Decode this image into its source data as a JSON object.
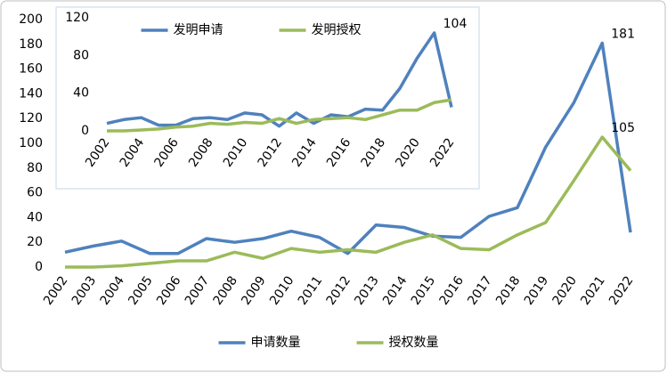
{
  "chart_data": [
    {
      "type": "line",
      "categories": [
        "2002",
        "2003",
        "2004",
        "2005",
        "2006",
        "2007",
        "2008",
        "2009",
        "2010",
        "2011",
        "2012",
        "2013",
        "2014",
        "2015",
        "2016",
        "2017",
        "2018",
        "2019",
        "2020",
        "2021",
        "2022"
      ],
      "series": [
        {
          "name": "申请数量",
          "color": "#4f81bd",
          "values": [
            12,
            17,
            21,
            11,
            11,
            23,
            20,
            23,
            29,
            24,
            11,
            34,
            32,
            25,
            24,
            41,
            48,
            97,
            133,
            181,
            28
          ],
          "value_labels": [
            null,
            null,
            null,
            null,
            null,
            null,
            null,
            null,
            null,
            null,
            null,
            null,
            null,
            null,
            null,
            null,
            null,
            null,
            null,
            "181",
            null
          ]
        },
        {
          "name": "授权数量",
          "color": "#9bbb59",
          "values": [
            0,
            0,
            1,
            3,
            5,
            5,
            12,
            7,
            15,
            12,
            14,
            12,
            20,
            26,
            15,
            14,
            26,
            36,
            70,
            105,
            78
          ],
          "value_labels": [
            null,
            null,
            null,
            null,
            null,
            null,
            null,
            null,
            null,
            null,
            null,
            null,
            null,
            null,
            null,
            null,
            null,
            null,
            null,
            "105",
            null
          ]
        }
      ],
      "ylim": [
        0,
        200
      ],
      "yticks": [
        0,
        20,
        40,
        60,
        80,
        100,
        120,
        140,
        160,
        180,
        200
      ],
      "legend": "bottom"
    },
    {
      "type": "line",
      "categories": [
        "2002",
        null,
        "2004",
        null,
        "2006",
        null,
        "2008",
        null,
        "2010",
        null,
        "2012",
        null,
        "2014",
        null,
        "2016",
        null,
        "2018",
        null,
        "2020",
        null,
        "2022"
      ],
      "series": [
        {
          "name": "发明申请",
          "color": "#4f81bd",
          "values": [
            8,
            12,
            14,
            6,
            6,
            13,
            14,
            12,
            19,
            17,
            5,
            19,
            8,
            17,
            15,
            23,
            22,
            45,
            77,
            104,
            25
          ],
          "value_labels": [
            null,
            null,
            null,
            null,
            null,
            null,
            null,
            null,
            null,
            null,
            null,
            null,
            null,
            null,
            null,
            null,
            null,
            null,
            null,
            "104",
            null
          ]
        },
        {
          "name": "发明授权",
          "color": "#9bbb59",
          "values": [
            0,
            0,
            1,
            2,
            4,
            5,
            8,
            7,
            9,
            8,
            13,
            8,
            12,
            13,
            14,
            12,
            17,
            22,
            22,
            30,
            33
          ],
          "value_labels": [
            null,
            null,
            null,
            null,
            null,
            null,
            null,
            null,
            null,
            null,
            null,
            null,
            null,
            null,
            null,
            null,
            null,
            null,
            null,
            null,
            null
          ]
        }
      ],
      "ylim": [
        0,
        120
      ],
      "yticks": [
        0,
        40,
        80,
        120
      ],
      "legend": "top"
    }
  ]
}
